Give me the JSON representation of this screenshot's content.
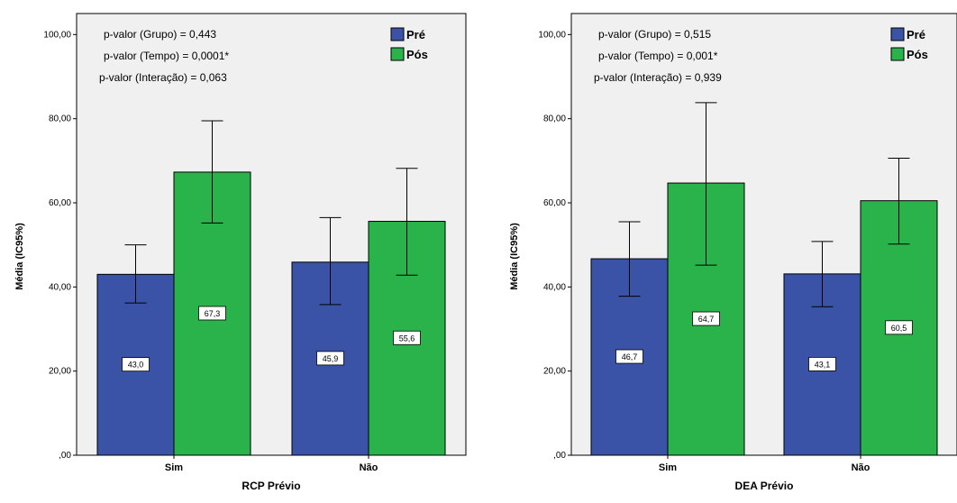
{
  "colors": {
    "pre": "#3a53a6",
    "pos": "#2ab34a",
    "plot_bg": "#f0f0f0",
    "axis": "#000000"
  },
  "chart_data": [
    {
      "type": "bar",
      "xlabel": "RCP Prévio",
      "ylabel": "Média (IC95%)",
      "ylim": [
        0,
        105
      ],
      "yticks": [
        0,
        20,
        40,
        60,
        80,
        100
      ],
      "ytick_labels": [
        ",00",
        "20,00",
        "40,00",
        "60,00",
        "80,00",
        "100,00"
      ],
      "categories": [
        "Sim",
        "Não"
      ],
      "legend_position": "top-right",
      "annotations": [
        "p-valor (Grupo) = 0,443",
        "p-valor (Tempo) = 0,0001*",
        "p-valor (Interação) = 0,063"
      ],
      "series": [
        {
          "name": "Pré",
          "color": "#3a53a6",
          "values": [
            43.0,
            45.9
          ],
          "labels": [
            "43,0",
            "45,9"
          ],
          "ci_low": [
            36.2,
            35.8
          ],
          "ci_high": [
            50.0,
            56.5
          ]
        },
        {
          "name": "Pós",
          "color": "#2ab34a",
          "values": [
            67.3,
            55.6
          ],
          "labels": [
            "67,3",
            "55,6"
          ],
          "ci_low": [
            55.2,
            42.8
          ],
          "ci_high": [
            79.5,
            68.2
          ]
        }
      ]
    },
    {
      "type": "bar",
      "xlabel": "DEA Prévio",
      "ylabel": "Média (IC95%)",
      "ylim": [
        0,
        105
      ],
      "yticks": [
        0,
        20,
        40,
        60,
        80,
        100
      ],
      "ytick_labels": [
        ",00",
        "20,00",
        "40,00",
        "60,00",
        "80,00",
        "100,00"
      ],
      "categories": [
        "Sim",
        "Não"
      ],
      "legend_position": "top-right",
      "annotations": [
        "p-valor (Grupo) = 0,515",
        "p-valor (Tempo) = 0,001*",
        "p-valor (Interação) = 0,939"
      ],
      "series": [
        {
          "name": "Pré",
          "color": "#3a53a6",
          "values": [
            46.7,
            43.1
          ],
          "labels": [
            "46,7",
            "43,1"
          ],
          "ci_low": [
            37.8,
            35.3
          ],
          "ci_high": [
            55.5,
            50.8
          ]
        },
        {
          "name": "Pós",
          "color": "#2ab34a",
          "values": [
            64.7,
            60.5
          ],
          "labels": [
            "64,7",
            "60,5"
          ],
          "ci_low": [
            45.2,
            50.2
          ],
          "ci_high": [
            83.8,
            70.6
          ]
        }
      ]
    }
  ]
}
